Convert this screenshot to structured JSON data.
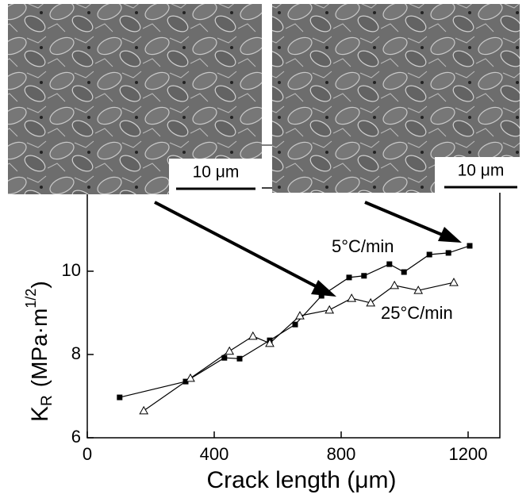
{
  "chart_data": {
    "type": "line",
    "x_label": "Crack length  (μm)",
    "y_label": [
      "K",
      "R",
      "(MPa·m",
      "1/2",
      ")"
    ],
    "xlim": [
      0,
      1300
    ],
    "xticks": [
      0,
      400,
      800,
      1200
    ],
    "ylim": [
      6,
      12
    ],
    "yticks": [
      6,
      8,
      10
    ],
    "series": [
      {
        "name": "5°C/min",
        "color": "#000000",
        "marker": "square",
        "x": [
          102,
          310,
          432,
          480,
          575,
          655,
          738,
          825,
          872,
          952,
          998,
          1078,
          1138,
          1205
        ],
        "values": [
          6.97,
          7.35,
          7.92,
          7.9,
          8.34,
          8.72,
          9.41,
          9.85,
          9.89,
          10.17,
          9.98,
          10.4,
          10.44,
          10.61
        ]
      },
      {
        "name": "25°C/min",
        "color": "#000000",
        "marker": "triangle",
        "x": [
          178,
          325,
          448,
          522,
          575,
          670,
          763,
          833,
          893,
          968,
          1043,
          1155
        ],
        "values": [
          6.65,
          7.43,
          8.08,
          8.44,
          8.27,
          8.93,
          9.07,
          9.35,
          9.24,
          9.66,
          9.54,
          9.73
        ]
      }
    ],
    "insets": [
      {
        "scale_label": "10 μm"
      },
      {
        "scale_label": "10 μm"
      }
    ]
  }
}
